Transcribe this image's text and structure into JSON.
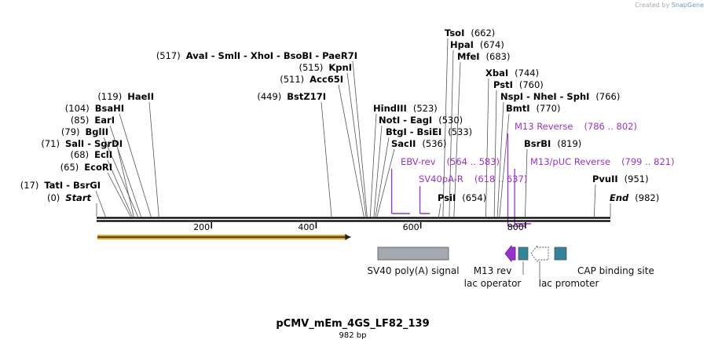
{
  "header": {
    "credit_prefix": "Created by",
    "credit_brand": "SnapGene"
  },
  "sequence": {
    "name": "pCMV_mEm_4GS_LF82_139",
    "length_label": "982 bp",
    "total_bp": 982
  },
  "axis": {
    "ticks": [
      200,
      400,
      600,
      800
    ]
  },
  "left_labels": [
    {
      "pos": "(0)",
      "name": "Start",
      "italic": true,
      "site": 0
    },
    {
      "pos": "(17)",
      "name": "TatI  -  BsrGI",
      "site": 17
    },
    {
      "pos": "(65)",
      "name": "EcoRI",
      "site": 65
    },
    {
      "pos": "(68)",
      "name": "EclI",
      "site": 68
    },
    {
      "pos": "(71)",
      "name": "SalI  -  SgrDI",
      "site": 71
    },
    {
      "pos": "(79)",
      "name": "BglII",
      "site": 79
    },
    {
      "pos": "(85)",
      "name": "EarI",
      "site": 85
    },
    {
      "pos": "(104)",
      "name": "BsaHI",
      "site": 104
    },
    {
      "pos": "(119)",
      "name": "HaeII",
      "site": 119
    },
    {
      "pos": "(449)",
      "name": "BstZ17I",
      "site": 449
    },
    {
      "pos": "(511)",
      "name": "Acc65I",
      "site": 511
    },
    {
      "pos": "(515)",
      "name": "KpnI",
      "site": 515
    },
    {
      "pos": "(517)",
      "name": "AvaI  -  SmlI  -  XhoI  -  BsoBI  -  PaeR7I",
      "site": 517
    }
  ],
  "right_labels": [
    {
      "pos": "(523)",
      "name": "HindIII",
      "site": 523
    },
    {
      "pos": "(530)",
      "name": "NotI  -  EagI",
      "site": 530
    },
    {
      "pos": "(533)",
      "name": "BtgI  -  BsiEI",
      "site": 533
    },
    {
      "pos": "(536)",
      "name": "SacII",
      "site": 536
    },
    {
      "pos": "(654)",
      "name": "PsiI",
      "site": 654
    },
    {
      "pos": "(662)",
      "name": "TsoI",
      "site": 662
    },
    {
      "pos": "(674)",
      "name": "HpaI",
      "site": 674
    },
    {
      "pos": "(683)",
      "name": "MfeI",
      "site": 683
    },
    {
      "pos": "(744)",
      "name": "XbaI",
      "site": 744
    },
    {
      "pos": "(760)",
      "name": "PstI",
      "site": 760
    },
    {
      "pos": "(766)",
      "name": "NspI  -  NheI  -  SphI",
      "site": 766
    },
    {
      "pos": "(770)",
      "name": "BmtI",
      "site": 770
    },
    {
      "pos": "(819)",
      "name": "BsrBI",
      "site": 819
    },
    {
      "pos": "(951)",
      "name": "PvuII",
      "site": 951
    },
    {
      "pos": "(982)",
      "name": "End",
      "italic": true,
      "site": 982
    }
  ],
  "primers": [
    {
      "name": "M13 Reverse",
      "range": "(786 .. 802)",
      "start": 786,
      "end": 802,
      "strand": "reverse"
    },
    {
      "name": "M13/pUC Reverse",
      "range": "(799 .. 821)",
      "start": 799,
      "end": 821,
      "strand": "reverse"
    },
    {
      "name": "EBV-rev",
      "range": "(564 .. 583)",
      "start": 564,
      "end": 583,
      "strand": "reverse"
    },
    {
      "name": "SV40pA-R",
      "range": "(618 .. 637)",
      "start": 618,
      "end": 637,
      "strand": "reverse"
    }
  ],
  "features": [
    {
      "name": "SV40 poly(A) signal",
      "start": 539,
      "end": 674,
      "color": "#a4a9b0",
      "shape": "box"
    },
    {
      "name": "M13 rev",
      "start": 786,
      "end": 802,
      "color": "#9932cc",
      "shape": "arrow-left"
    },
    {
      "name": "lac operator",
      "start": 806,
      "end": 822,
      "color": "#31849b",
      "shape": "box"
    },
    {
      "name": "lac promoter",
      "start": 829,
      "end": 859,
      "color": "#ffffff",
      "shape": "arrow-left-hollow"
    },
    {
      "name": "CAP binding site",
      "start": 874,
      "end": 895,
      "color": "#31849b",
      "shape": "box"
    }
  ],
  "orf": {
    "start": 0,
    "end": 505,
    "color": "#e6a817"
  },
  "colors": {
    "primer": "#9932cc",
    "line": "#555555"
  }
}
